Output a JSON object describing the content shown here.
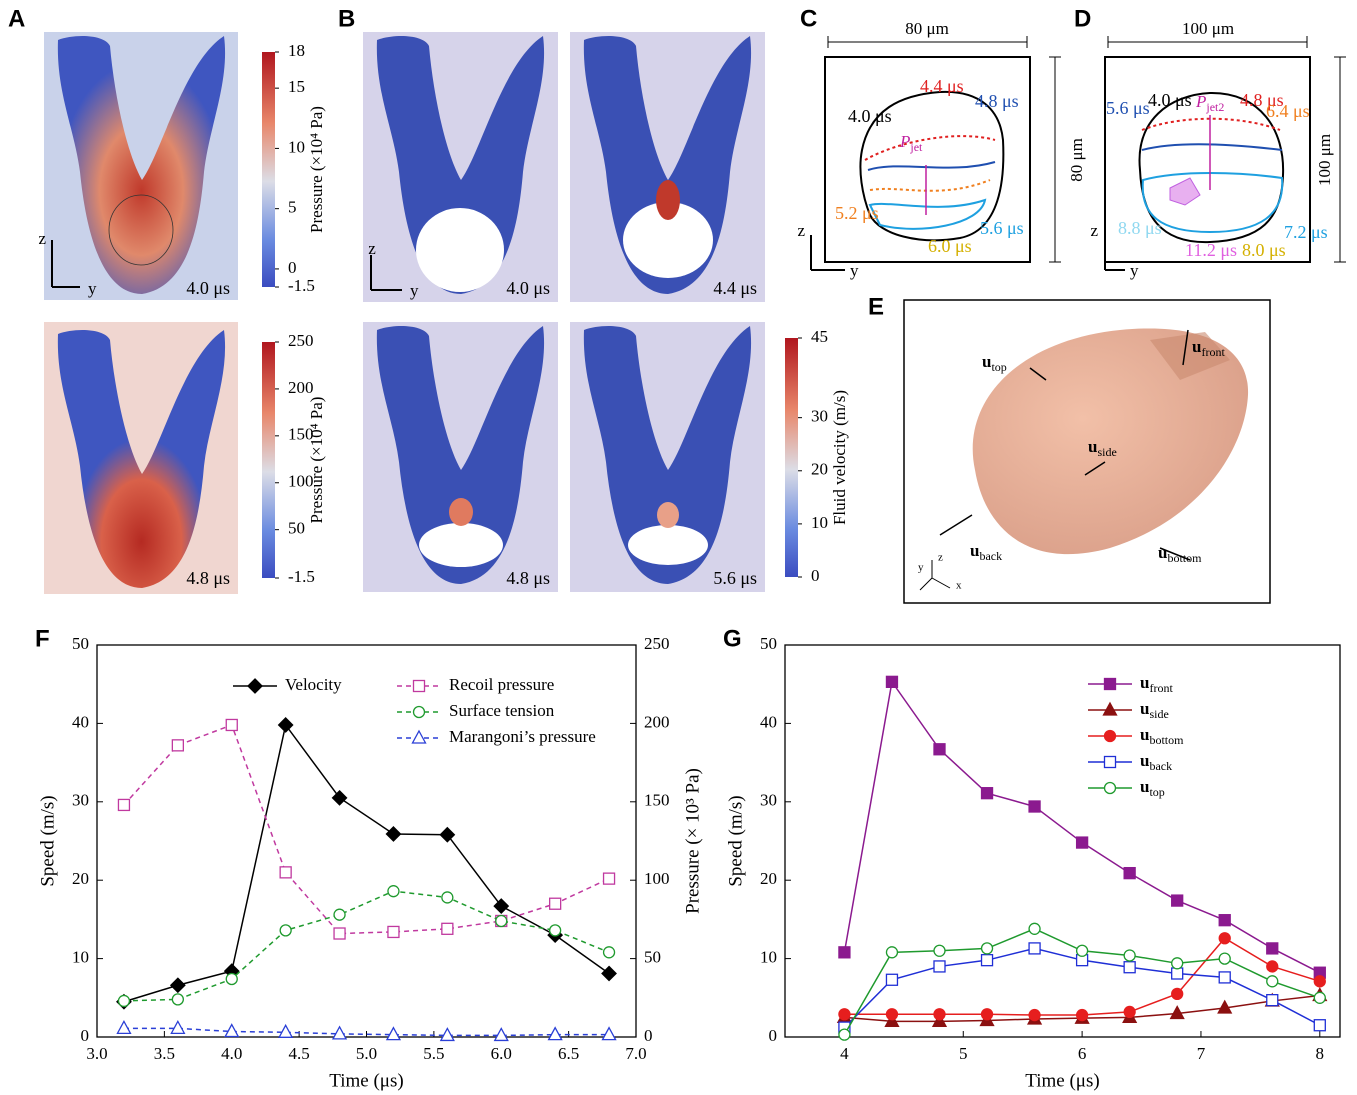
{
  "panels": {
    "A": {
      "label": "A",
      "times": [
        "4.0 μs",
        "4.8 μs"
      ],
      "axes": [
        "z",
        "y"
      ],
      "colorbars": [
        {
          "label": "Pressure (×10⁴ Pa)",
          "lim": [
            -1.5,
            18
          ],
          "ticks": [
            18,
            15,
            10,
            5,
            0,
            -1.5
          ]
        },
        {
          "label": "Pressure (×10⁴ Pa)",
          "lim": [
            -1.5,
            250
          ],
          "ticks": [
            250,
            200,
            150,
            100,
            50,
            -1.5
          ]
        }
      ]
    },
    "B": {
      "label": "B",
      "times": [
        "4.0 μs",
        "4.4 μs",
        "4.8 μs",
        "5.6 μs"
      ],
      "axes": [
        "z",
        "y"
      ],
      "colorbar": {
        "label": "Fluid velocity (m/s)",
        "lim": [
          0,
          45
        ],
        "ticks": [
          45,
          30,
          20,
          10,
          0
        ]
      }
    },
    "C": {
      "label": "C",
      "width": "80 μm",
      "height": "80 μm",
      "jet": "P",
      "jet_sub": "jet",
      "axes": [
        "z",
        "y"
      ],
      "times": [
        "4.0 μs",
        "4.4 μs",
        "4.8 μs",
        "5.2 μs",
        "5.6 μs",
        "6.0 μs"
      ]
    },
    "D": {
      "label": "D",
      "width": "100 μm",
      "height": "100 μm",
      "jet": "P",
      "jet_sub": "jet2",
      "axes": [
        "z",
        "y"
      ],
      "times": [
        "4.0 μs",
        "4.8 μs",
        "5.6 μs",
        "6.4 μs",
        "8.8 μs",
        "11.2 μs",
        "8.0 μs",
        "7.2 μs"
      ]
    },
    "E": {
      "label": "E",
      "vectors": [
        "utop",
        "ufront",
        "uside",
        "uback",
        "ubottom"
      ],
      "axes": [
        "y",
        "z",
        "x"
      ]
    }
  },
  "chart_data": [
    {
      "type": "line",
      "panel_label": "F",
      "x_label": "Time (μs)",
      "y_label": "Speed (m/s)",
      "y2_label": "Pressure (× 10³ Pa)",
      "x": [
        3.2,
        3.6,
        4.0,
        4.4,
        4.8,
        5.2,
        5.6,
        6.0,
        6.4,
        6.8
      ],
      "xlim": [
        3,
        7
      ],
      "xticks": [
        {
          "value": 3,
          "label": "3.0"
        },
        {
          "value": 3.5,
          "label": "3.5"
        },
        {
          "value": 4,
          "label": "4.0"
        },
        {
          "value": 4.5,
          "label": "4.5"
        },
        {
          "value": 5,
          "label": "5.0"
        },
        {
          "value": 5.5,
          "label": "5.5"
        },
        {
          "value": 6,
          "label": "6.0"
        },
        {
          "value": 6.5,
          "label": "6.5"
        },
        {
          "value": 7,
          "label": "7.0"
        }
      ],
      "ylim": [
        0,
        50
      ],
      "yticks": [
        0,
        10,
        20,
        30,
        40,
        50
      ],
      "y2lim": [
        0,
        250
      ],
      "y2ticks": [
        0,
        50,
        100,
        150,
        200,
        250
      ],
      "series": [
        {
          "name": "Velocity",
          "color": "#000000",
          "marker": "diamond",
          "filled": true,
          "dashed": false,
          "values": [
            4.5,
            6.6,
            8.4,
            39.8,
            30.5,
            25.9,
            25.8,
            16.7,
            13.0,
            8.1
          ]
        },
        {
          "name": "Recoil pressure",
          "color": "#c0399f",
          "marker": "square",
          "filled": false,
          "dashed": true,
          "axis": "y2",
          "values": [
            148,
            186,
            199,
            105,
            66,
            67,
            69,
            74,
            85,
            101
          ]
        },
        {
          "name": "Surface tension",
          "color": "#1f9a2e",
          "marker": "circle",
          "filled": false,
          "dashed": true,
          "axis": "y2",
          "values": [
            23,
            24,
            37,
            68,
            78,
            93,
            89,
            74,
            68,
            54
          ]
        },
        {
          "name": "Marangoni’s pressure",
          "color": "#2a3fd6",
          "marker": "triangle",
          "filled": false,
          "dashed": true,
          "axis": "y2",
          "values": [
            5.5,
            5.5,
            3.5,
            3,
            2,
            1.5,
            1,
            1,
            1.5,
            1.5
          ]
        }
      ]
    },
    {
      "type": "line",
      "panel_label": "G",
      "x_label": "Time (μs)",
      "y_label": "Speed (m/s)",
      "x": [
        4,
        4.4,
        4.8,
        5.2,
        5.6,
        6,
        6.4,
        6.8,
        7.2,
        7.6,
        8
      ],
      "xlim": [
        3.5,
        8.17
      ],
      "xticks": [
        4,
        5,
        6,
        7,
        8
      ],
      "ylim": [
        0,
        50
      ],
      "yticks": [
        0,
        10,
        20,
        30,
        40,
        50
      ],
      "series": [
        {
          "name": "ufront",
          "color": "#8b1a8f",
          "marker": "square",
          "filled": true,
          "dashed": false,
          "values": [
            10.8,
            45.3,
            36.7,
            31.1,
            29.4,
            24.8,
            20.9,
            17.4,
            14.9,
            11.3,
            8.2
          ]
        },
        {
          "name": "uside",
          "color": "#8b1010",
          "marker": "triangle",
          "filled": true,
          "dashed": false,
          "values": [
            2.5,
            2.0,
            2.0,
            2.1,
            2.3,
            2.4,
            2.5,
            3.0,
            3.7,
            4.6,
            5.3
          ]
        },
        {
          "name": "ubottom",
          "color": "#e61e1e",
          "marker": "circle",
          "filled": true,
          "dashed": false,
          "values": [
            2.9,
            2.9,
            2.9,
            2.9,
            2.8,
            2.8,
            3.2,
            5.5,
            12.6,
            9.0,
            7.1
          ]
        },
        {
          "name": "uback",
          "color": "#1f2fd6",
          "marker": "square",
          "filled": false,
          "dashed": false,
          "values": [
            1.2,
            7.3,
            9.0,
            9.8,
            11.3,
            9.8,
            8.9,
            8.1,
            7.6,
            4.7,
            1.5
          ]
        },
        {
          "name": "utop",
          "color": "#1f9a2e",
          "marker": "circle",
          "filled": false,
          "dashed": false,
          "values": [
            0.3,
            10.8,
            11.0,
            11.3,
            13.8,
            11.0,
            10.4,
            9.4,
            10.0,
            7.1,
            5.0
          ]
        }
      ]
    }
  ]
}
